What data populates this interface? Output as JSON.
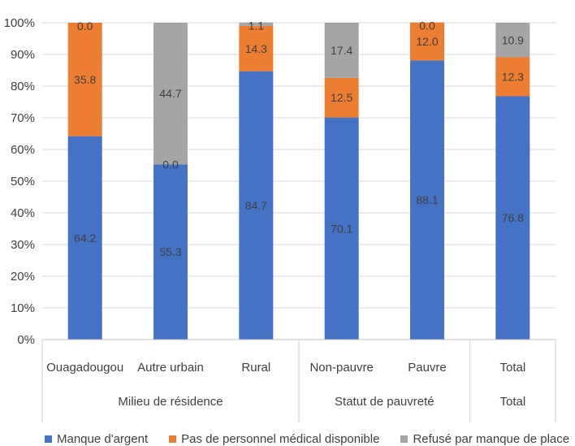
{
  "chart_data": {
    "type": "bar",
    "stacked": true,
    "y_axis": {
      "min": 0,
      "max": 100,
      "step": 10,
      "tick_labels": [
        "0%",
        "10%",
        "20%",
        "30%",
        "40%",
        "50%",
        "60%",
        "70%",
        "80%",
        "90%",
        "100%"
      ]
    },
    "grid": true,
    "categories": [
      "Ouagadougou",
      "Autre urbain",
      "Rural",
      "Non-pauvre",
      "Pauvre",
      "Total"
    ],
    "groups": [
      {
        "label": "Milieu de résidence",
        "categories": [
          "Ouagadougou",
          "Autre urbain",
          "Rural"
        ]
      },
      {
        "label": "Statut de pauvreté",
        "categories": [
          "Non-pauvre",
          "Pauvre"
        ]
      },
      {
        "label": "Total",
        "categories": [
          "Total"
        ]
      }
    ],
    "series": [
      {
        "name": "Manque d'argent",
        "color": "#4472C4",
        "values": [
          64.2,
          55.3,
          84.7,
          70.1,
          88.1,
          76.8
        ],
        "labels": [
          "64.2",
          "55.3",
          "84.7",
          "70.1",
          "88.1",
          "76.8"
        ]
      },
      {
        "name": "Pas de personnel médical disponible",
        "color": "#ED7D31",
        "values": [
          35.8,
          0.0,
          14.3,
          12.5,
          12.0,
          12.3
        ],
        "labels": [
          "35.8",
          "0.0",
          "14.3",
          "12.5",
          "12.0",
          "12.3"
        ]
      },
      {
        "name": "Refusé par manque de place",
        "color": "#A5A5A5",
        "values": [
          0.0,
          44.7,
          1.1,
          17.4,
          0.0,
          10.9
        ],
        "labels": [
          "0.0",
          "44.7",
          "1.1",
          "17.4",
          "0.0",
          "10.9"
        ]
      }
    ],
    "legend_position": "bottom"
  }
}
